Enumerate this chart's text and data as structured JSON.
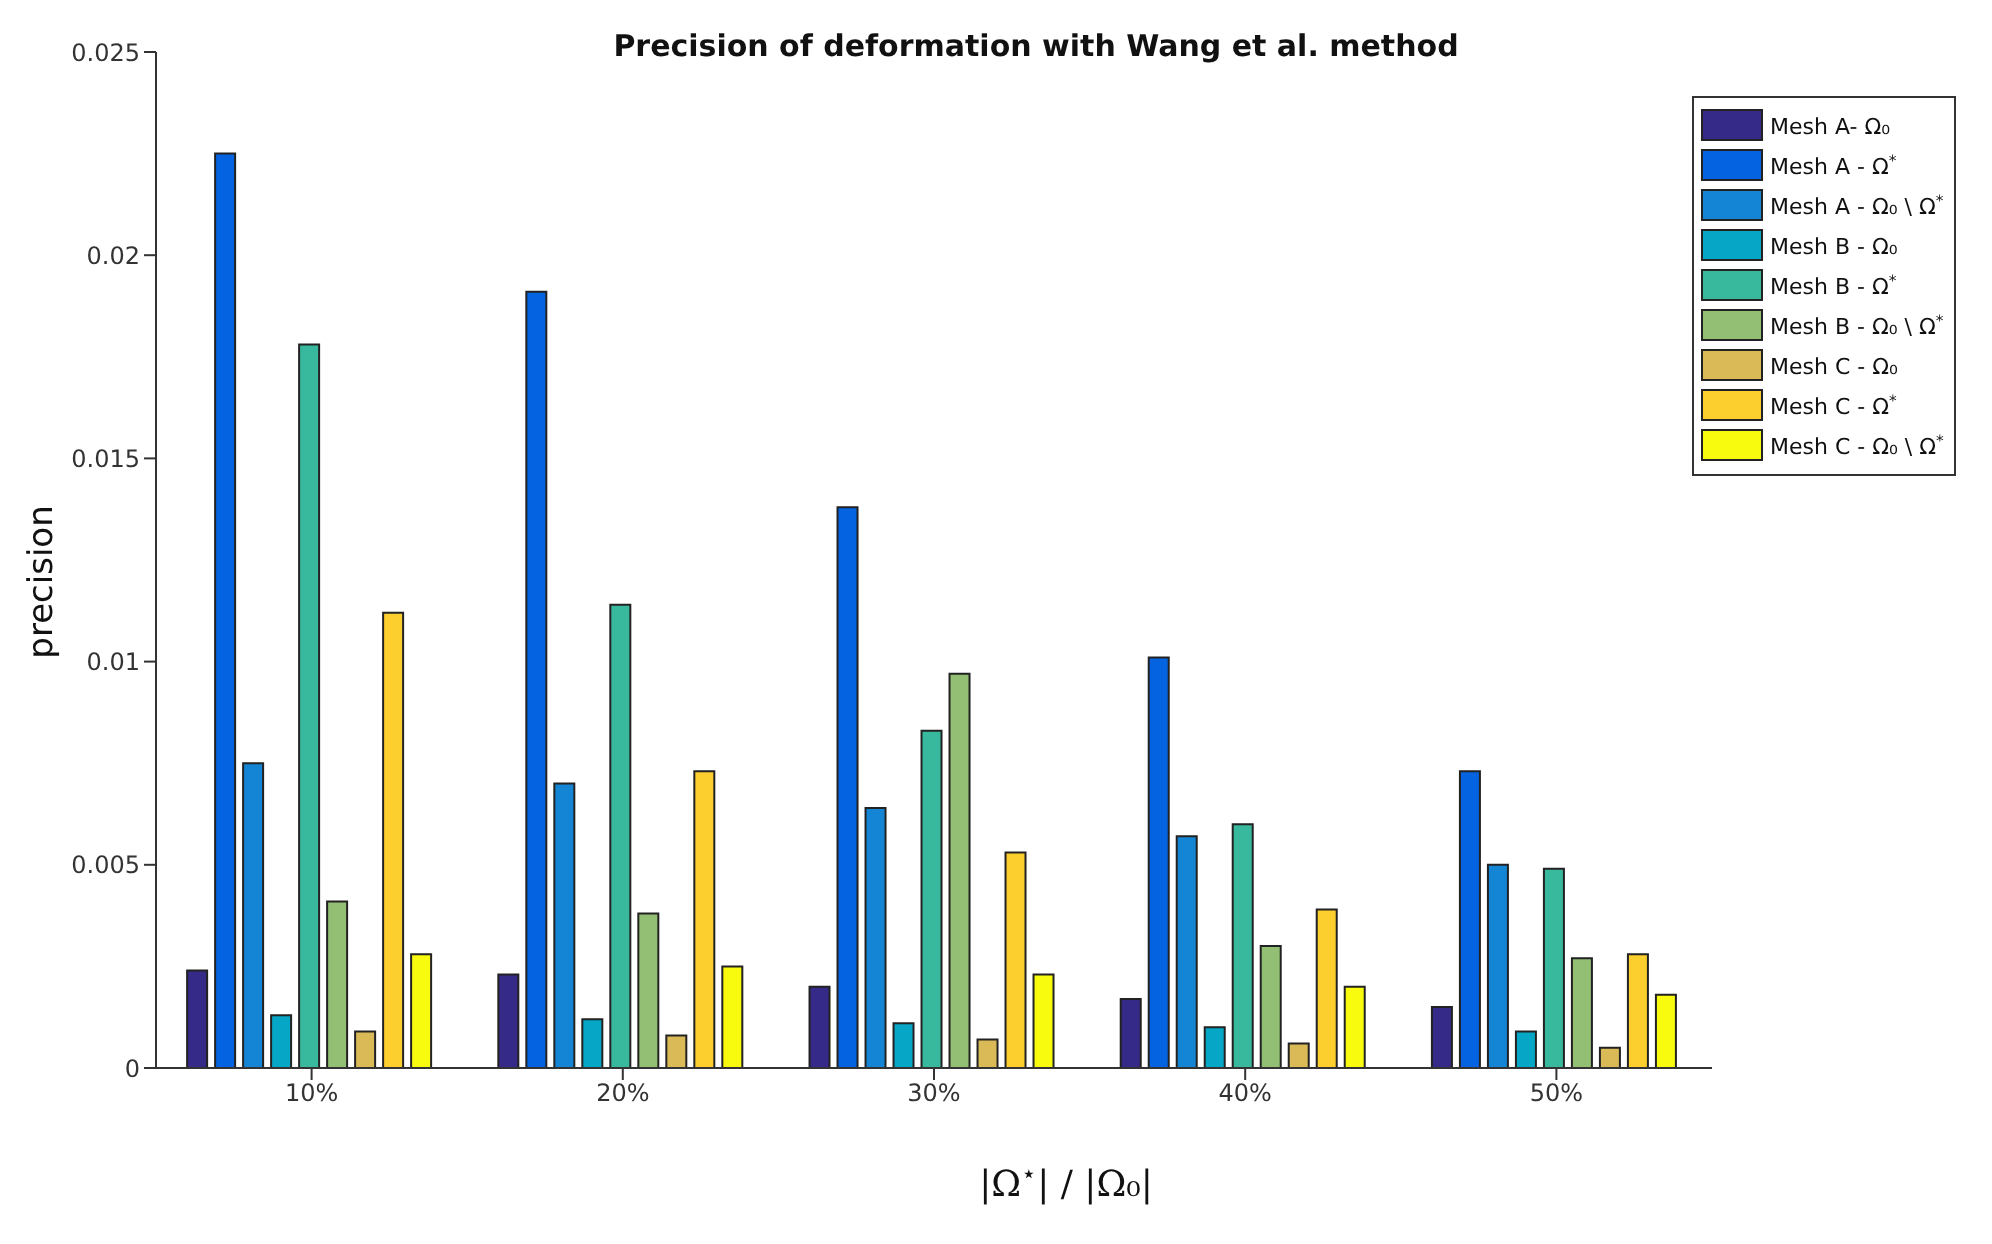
{
  "chart_data": {
    "type": "bar",
    "title": "Precision of deformation with Wang et al. method",
    "xlabel": "|Ω$^{⋆}$| / |Ω₀|",
    "ylabel": "precision",
    "categories": [
      "10%",
      "20%",
      "30%",
      "40%",
      "50%"
    ],
    "series": [
      {
        "name": "Mesh A- Ω₀",
        "color": "#352a87",
        "values": [
          0.0024,
          0.0023,
          0.002,
          0.0017,
          0.0015
        ]
      },
      {
        "name": "Mesh A - Ω$^{*}$",
        "color": "#0363e1",
        "values": [
          0.0225,
          0.0191,
          0.0138,
          0.0101,
          0.0073
        ]
      },
      {
        "name": "Mesh A - Ω₀ \\ Ω$^{*}$",
        "color": "#1485d4",
        "values": [
          0.0075,
          0.007,
          0.0064,
          0.0057,
          0.005
        ]
      },
      {
        "name": "Mesh B - Ω₀",
        "color": "#06a7c6",
        "values": [
          0.0013,
          0.0012,
          0.0011,
          0.001,
          0.0009
        ]
      },
      {
        "name": "Mesh B - Ω$^{*}$",
        "color": "#38b99e",
        "values": [
          0.0178,
          0.0114,
          0.0083,
          0.006,
          0.0049
        ]
      },
      {
        "name": "Mesh B - Ω₀ \\ Ω$^{*}$",
        "color": "#92bf73",
        "values": [
          0.0041,
          0.0038,
          0.0097,
          0.003,
          0.0027
        ]
      },
      {
        "name": "Mesh C - Ω₀",
        "color": "#d9ba56",
        "values": [
          0.0009,
          0.0008,
          0.0007,
          0.0006,
          0.0005
        ]
      },
      {
        "name": "Mesh C - Ω$^{*}$",
        "color": "#fcce2e",
        "values": [
          0.0112,
          0.0073,
          0.0053,
          0.0039,
          0.0028
        ]
      },
      {
        "name": "Mesh C - Ω₀ \\ Ω$^{*}$",
        "color": "#f9fb0e",
        "values": [
          0.0028,
          0.0025,
          0.0023,
          0.002,
          0.0018
        ]
      }
    ],
    "ylim": [
      0,
      0.025
    ],
    "yticks": [
      0,
      0.005,
      0.01,
      0.015,
      0.02,
      0.025
    ],
    "grid": false,
    "legend": "top right"
  }
}
